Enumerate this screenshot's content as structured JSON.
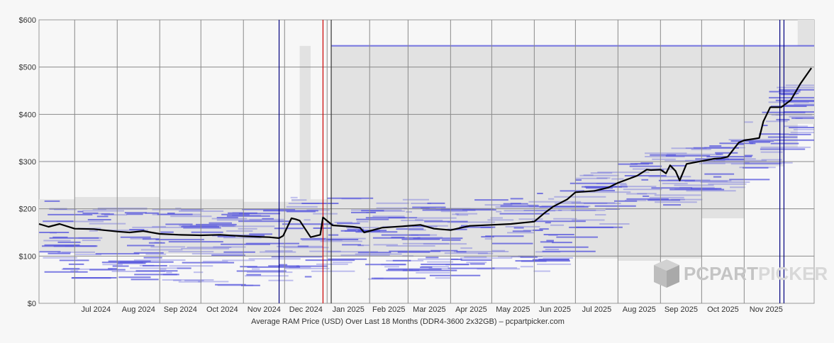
{
  "chart_data": {
    "type": "line",
    "title": "",
    "caption": "Average RAM Price (USD) Over Last 18 Months (DDR4-3600 2x32GB) – pcpartpicker.com",
    "ylabel": "",
    "xlabel": "",
    "ylim": [
      0,
      600
    ],
    "y_ticks": [
      0,
      100,
      200,
      300,
      400,
      500,
      600
    ],
    "y_tick_labels": [
      "$0",
      "$100",
      "$200",
      "$300",
      "$400",
      "$500",
      "$600"
    ],
    "x_range": [
      "2024-06-05",
      "2025-12-22"
    ],
    "month_labels": [
      "Jul 2024",
      "Aug 2024",
      "Sep 2024",
      "Oct 2024",
      "Nov 2024",
      "Dec 2024",
      "Jan 2025",
      "Feb 2025",
      "Mar 2025",
      "Apr 2025",
      "May 2025",
      "Jun 2025",
      "Jul 2025",
      "Aug 2025",
      "Sep 2025",
      "Oct 2025",
      "Nov 2025"
    ],
    "month_dates": [
      "2024-07-01",
      "2024-08-01",
      "2024-09-01",
      "2024-10-01",
      "2024-11-01",
      "2024-12-01",
      "2025-01-01",
      "2025-02-01",
      "2025-03-01",
      "2025-04-01",
      "2025-05-01",
      "2025-06-01",
      "2025-07-01",
      "2025-08-01",
      "2025-09-01",
      "2025-10-01",
      "2025-11-01"
    ],
    "grid": true,
    "series": [
      {
        "x": [
          "2024-06-05",
          "2024-06-12",
          "2024-06-20",
          "2024-07-01",
          "2024-07-15",
          "2024-08-01",
          "2024-08-10",
          "2024-08-20",
          "2024-09-01",
          "2024-09-15",
          "2024-10-01",
          "2024-10-15",
          "2024-11-01",
          "2024-11-10",
          "2024-11-20",
          "2024-11-27",
          "2024-11-30",
          "2024-12-06",
          "2024-12-09",
          "2024-12-12",
          "2024-12-20",
          "2024-12-27",
          "2024-12-29",
          "2025-01-05",
          "2025-01-20",
          "2025-01-25",
          "2025-01-28",
          "2025-02-10",
          "2025-02-25",
          "2025-03-10",
          "2025-03-20",
          "2025-04-01",
          "2025-04-15",
          "2025-05-01",
          "2025-05-15",
          "2025-06-01",
          "2025-06-08",
          "2025-06-15",
          "2025-06-25",
          "2025-07-01",
          "2025-07-15",
          "2025-07-25",
          "2025-08-01",
          "2025-08-15",
          "2025-08-22",
          "2025-08-25",
          "2025-09-01",
          "2025-09-05",
          "2025-09-08",
          "2025-09-12",
          "2025-09-15",
          "2025-09-20",
          "2025-10-01",
          "2025-10-10",
          "2025-10-15",
          "2025-10-20",
          "2025-10-28",
          "2025-11-01",
          "2025-11-08",
          "2025-11-12",
          "2025-11-15",
          "2025-11-20",
          "2025-11-28",
          "2025-12-05",
          "2025-12-12",
          "2025-12-20"
        ],
        "values": [
          168,
          162,
          168,
          158,
          157,
          152,
          150,
          153,
          147,
          145,
          144,
          145,
          142,
          141,
          140,
          138,
          143,
          180,
          178,
          175,
          140,
          145,
          182,
          165,
          162,
          160,
          150,
          160,
          163,
          166,
          158,
          155,
          164,
          166,
          168,
          173,
          190,
          205,
          220,
          235,
          238,
          245,
          255,
          270,
          283,
          282,
          283,
          275,
          292,
          280,
          260,
          295,
          301,
          306,
          307,
          310,
          340,
          345,
          348,
          350,
          385,
          415,
          415,
          430,
          465,
          498
        ]
      }
    ],
    "vertical_markers": [
      {
        "date": "2024-11-27",
        "color": "#000080"
      },
      {
        "date": "2024-12-29",
        "color": "#cc0000"
      },
      {
        "date": "2025-01-04",
        "color": "#333333"
      },
      {
        "date": "2025-11-27",
        "color": "#000080"
      },
      {
        "date": "2025-11-30",
        "color": "#000080"
      }
    ],
    "range_band": {
      "x": [
        "2024-06-05",
        "2024-07-01",
        "2024-09-01",
        "2024-11-01",
        "2024-12-06",
        "2024-12-12",
        "2024-12-20",
        "2025-01-04",
        "2025-06-01",
        "2025-07-01",
        "2025-08-01",
        "2025-09-01",
        "2025-10-01",
        "2025-11-01",
        "2025-11-30",
        "2025-12-10",
        "2025-12-22"
      ],
      "low": [
        110,
        105,
        105,
        100,
        100,
        100,
        100,
        100,
        100,
        95,
        90,
        95,
        180,
        290,
        330,
        380,
        380
      ],
      "high": [
        220,
        225,
        220,
        215,
        220,
        545,
        220,
        545,
        545,
        545,
        545,
        545,
        545,
        545,
        545,
        600,
        600
      ]
    },
    "listing_colors": {
      "line": "#000000",
      "listing": "#5555dd",
      "band": "#e2e2e2",
      "grid": "#8a8a8a"
    },
    "logo_text": "PCPARTPICKER"
  }
}
